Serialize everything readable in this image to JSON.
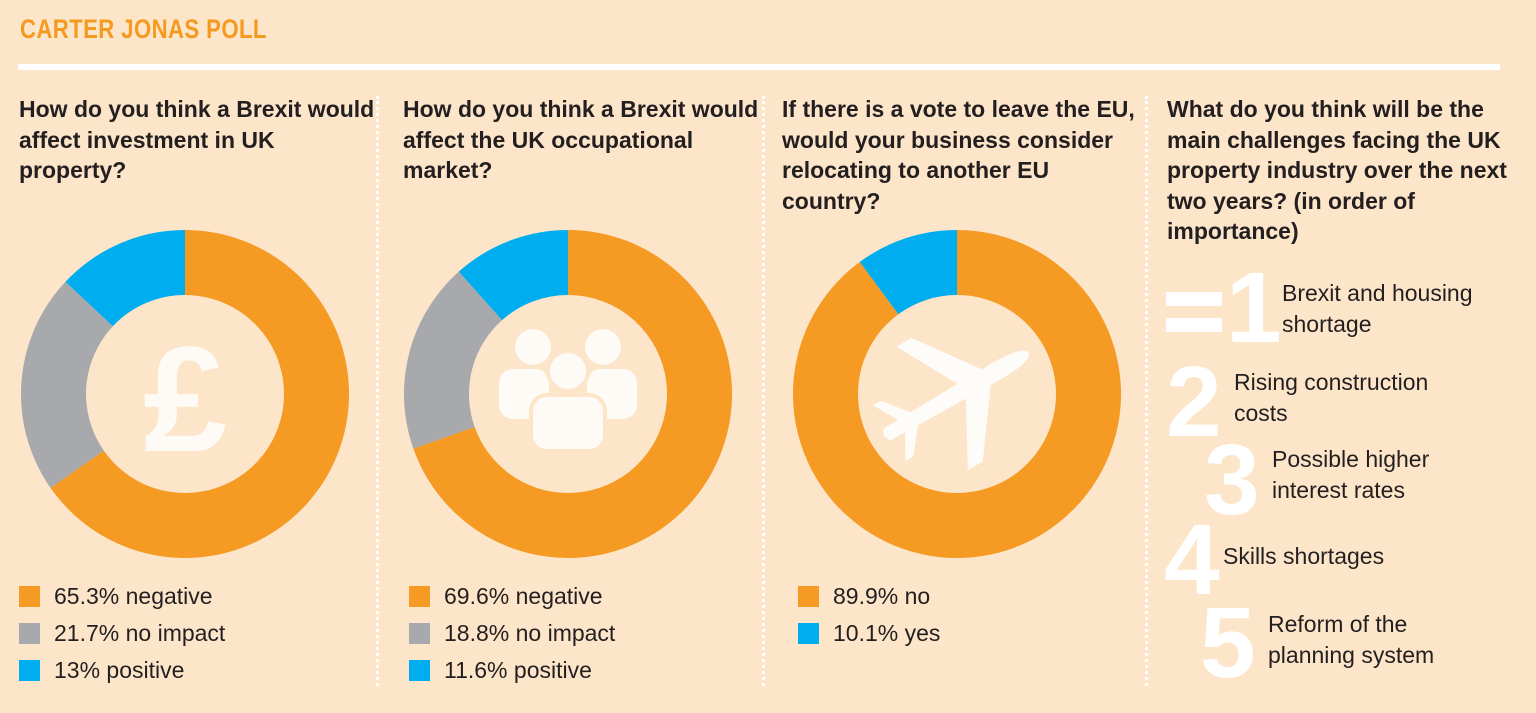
{
  "header": {
    "title": "CARTER JONAS POLL"
  },
  "colors": {
    "negative": "#f59a23",
    "neutral": "#a7a9ac",
    "positive": "#00aeef",
    "bg": "#fde5c9",
    "accent": "#f39a1f"
  },
  "chart_data": [
    {
      "type": "pie",
      "title": "How do you think a Brexit would affect investment in UK property?",
      "icon": "pound-icon",
      "series": [
        {
          "label": "65.3% negative",
          "value": 65.3,
          "color": "#f59a23"
        },
        {
          "label": "21.7% no impact",
          "value": 21.7,
          "color": "#a7a9ac"
        },
        {
          "label": "13% positive",
          "value": 13,
          "color": "#00aeef"
        }
      ]
    },
    {
      "type": "pie",
      "title": "How do you think a Brexit would affect the UK occupational market?",
      "icon": "people-icon",
      "series": [
        {
          "label": "69.6% negative",
          "value": 69.6,
          "color": "#f59a23"
        },
        {
          "label": "18.8% no impact",
          "value": 18.8,
          "color": "#a7a9ac"
        },
        {
          "label": "11.6% positive",
          "value": 11.6,
          "color": "#00aeef"
        }
      ]
    },
    {
      "type": "pie",
      "title": "If there is a vote to leave the EU, would your business consider relocating to another EU country?",
      "icon": "airplane-icon",
      "series": [
        {
          "label": "89.9% no",
          "value": 89.9,
          "color": "#f59a23"
        },
        {
          "label": "10.1% yes",
          "value": 10.1,
          "color": "#00aeef"
        }
      ]
    }
  ],
  "challenges": {
    "question": "What do you think will be the main challenges facing the UK property industry over the next two years? (in order of importance)",
    "items": [
      {
        "rank": "1",
        "label": "Brexit and housing shortage",
        "tied": true
      },
      {
        "rank": "2",
        "label": "Rising construction costs"
      },
      {
        "rank": "3",
        "label": "Possible higher interest rates"
      },
      {
        "rank": "4",
        "label": "Skills shortages"
      },
      {
        "rank": "5",
        "label": "Reform of the planning system"
      }
    ]
  }
}
